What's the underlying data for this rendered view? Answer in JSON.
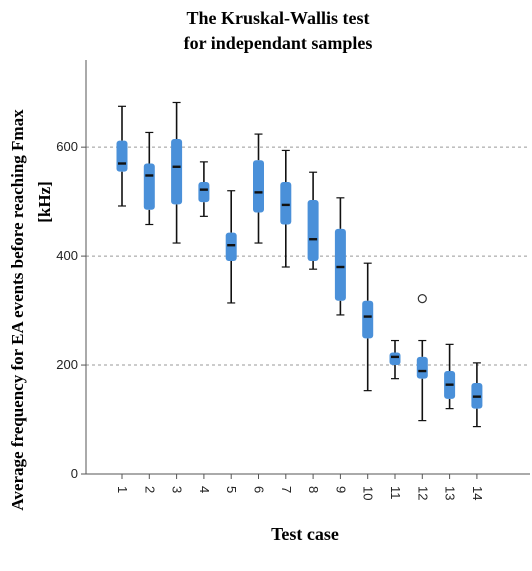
{
  "chart_data": {
    "type": "box",
    "title": "The Kruskal-Wallis test",
    "subtitle": "for independant samples",
    "xlabel": "Test case",
    "ylabel": "Average frequency for EA events before reaching Fmax",
    "ylabel_unit": "[kHz]",
    "ylim": [
      0,
      760
    ],
    "yticks": [
      0,
      200,
      400,
      600
    ],
    "grid": "horizontal dashed",
    "categories": [
      "1",
      "2",
      "3",
      "4",
      "5",
      "6",
      "7",
      "8",
      "9",
      "10",
      "11",
      "12",
      "13",
      "14"
    ],
    "box_color": "#4a90d9",
    "boxes": [
      {
        "min": 492,
        "q1": 555,
        "median": 570,
        "q3": 612,
        "max": 675
      },
      {
        "min": 458,
        "q1": 485,
        "median": 548,
        "q3": 570,
        "max": 627
      },
      {
        "min": 424,
        "q1": 495,
        "median": 564,
        "q3": 615,
        "max": 682
      },
      {
        "min": 473,
        "q1": 499,
        "median": 522,
        "q3": 536,
        "max": 573
      },
      {
        "min": 314,
        "q1": 391,
        "median": 420,
        "q3": 443,
        "max": 520
      },
      {
        "min": 424,
        "q1": 480,
        "median": 517,
        "q3": 576,
        "max": 624
      },
      {
        "min": 380,
        "q1": 458,
        "median": 494,
        "q3": 536,
        "max": 594
      },
      {
        "min": 376,
        "q1": 391,
        "median": 431,
        "q3": 503,
        "max": 554
      },
      {
        "min": 292,
        "q1": 318,
        "median": 380,
        "q3": 450,
        "max": 507
      },
      {
        "min": 153,
        "q1": 249,
        "median": 289,
        "q3": 318,
        "max": 387
      },
      {
        "min": 175,
        "q1": 200,
        "median": 215,
        "q3": 223,
        "max": 245
      },
      {
        "min": 98,
        "q1": 175,
        "median": 189,
        "q3": 215,
        "max": 245
      },
      {
        "min": 120,
        "q1": 138,
        "median": 164,
        "q3": 189,
        "max": 238
      },
      {
        "min": 87,
        "q1": 120,
        "median": 142,
        "q3": 167,
        "max": 204
      }
    ],
    "outliers": [
      {
        "category": "12",
        "value": 322
      }
    ]
  }
}
